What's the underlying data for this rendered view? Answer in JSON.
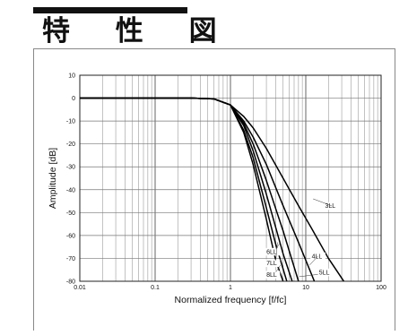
{
  "header": {
    "title": "特 性 図"
  },
  "chart_data": {
    "type": "line",
    "xlabel": "Normalized frequency [f/fc]",
    "ylabel": "Amplitude [dB]",
    "xscale": "log",
    "xlim": [
      0.01,
      100
    ],
    "ylim": [
      -80,
      10
    ],
    "grid": true,
    "x_ticks": [
      0.01,
      0.1,
      1,
      10,
      100
    ],
    "x_tick_labels": [
      "0.01",
      "0.1",
      "1",
      "10",
      "100"
    ],
    "y_ticks": [
      10,
      0,
      -10,
      -20,
      -30,
      -40,
      -50,
      -60,
      -70,
      -80
    ],
    "y_tick_labels": [
      "10",
      "0",
      "-10",
      "-20",
      "-30",
      "-40",
      "-50",
      "-60",
      "-70",
      "-80"
    ],
    "series": [
      {
        "name": "3LL",
        "x": [
          0.01,
          0.3,
          0.6,
          1,
          1.5,
          2,
          3,
          5,
          8,
          12,
          20,
          32
        ],
        "y": [
          0,
          0,
          -0.3,
          -3,
          -8,
          -13,
          -22,
          -35,
          -47,
          -57,
          -70,
          -80
        ]
      },
      {
        "name": "4LL",
        "x": [
          0.01,
          0.3,
          0.6,
          1,
          1.5,
          2,
          3,
          5,
          8,
          13
        ],
        "y": [
          0,
          0,
          -0.3,
          -3,
          -10,
          -17,
          -29,
          -47,
          -63,
          -80
        ]
      },
      {
        "name": "5LL",
        "x": [
          0.01,
          0.3,
          0.6,
          1,
          1.5,
          2,
          3,
          5,
          8
        ],
        "y": [
          0,
          0,
          -0.3,
          -3,
          -11,
          -20,
          -36,
          -58,
          -80
        ]
      },
      {
        "name": "6LL",
        "x": [
          0.01,
          0.3,
          0.6,
          1,
          1.5,
          2,
          3,
          5,
          6.6
        ],
        "y": [
          0,
          0,
          -0.3,
          -3,
          -12,
          -23,
          -42,
          -68,
          -80
        ]
      },
      {
        "name": "7LL",
        "x": [
          0.01,
          0.3,
          0.6,
          1,
          1.5,
          2,
          3,
          4,
          5.6
        ],
        "y": [
          0,
          0,
          -0.3,
          -3,
          -14,
          -26,
          -48,
          -64,
          -80
        ]
      },
      {
        "name": "8LL",
        "x": [
          0.01,
          0.3,
          0.6,
          1,
          1.5,
          2,
          3,
          4,
          5
        ],
        "y": [
          0,
          0,
          -0.3,
          -3,
          -15,
          -29,
          -53,
          -71,
          -80
        ]
      }
    ],
    "annotations": [
      {
        "text": "3LL",
        "x": 18,
        "y": -48
      },
      {
        "text": "4LL",
        "x": 12,
        "y": -70
      },
      {
        "text": "5LL",
        "x": 15,
        "y": -77
      },
      {
        "text": "6LL",
        "x": 3.0,
        "y": -68
      },
      {
        "text": "7LL",
        "x": 3.0,
        "y": -73
      },
      {
        "text": "8LL",
        "x": 3.0,
        "y": -78
      }
    ]
  }
}
